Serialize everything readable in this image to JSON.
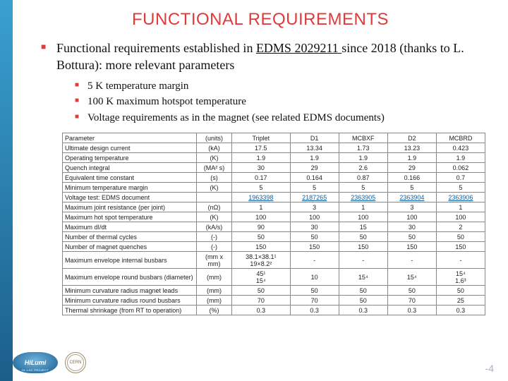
{
  "title": "FUNCTIONAL REQUIREMENTS",
  "bullet_main_pre": "Functional requirements established in ",
  "bullet_main_link": "EDMS 2029211 ",
  "bullet_main_post": "since 2018 (thanks to L. Bottura): more relevant parameters",
  "sub_bullets": [
    "5 K temperature margin",
    "100 K maximum hotspot temperature",
    "Voltage requirements as in the magnet (see related EDMS documents)"
  ],
  "table": {
    "columns": [
      "Parameter",
      "(units)",
      "Triplet",
      "D1",
      "MCBXF",
      "D2",
      "MCBRD"
    ],
    "rows": [
      [
        "Ultimate design current",
        "(kA)",
        "17.5",
        "13.34",
        "1.73",
        "13.23",
        "0.423"
      ],
      [
        "Operating temperature",
        "(K)",
        "1.9",
        "1.9",
        "1.9",
        "1.9",
        "1.9"
      ],
      [
        "Quench integral",
        "(MA² s)",
        "30",
        "29",
        "2.6",
        "29",
        "0.062"
      ],
      [
        "Equivalent time constant",
        "(s)",
        "0.17",
        "0.164",
        "0.87",
        "0.166",
        "0.7"
      ],
      [
        "Minimum temperature margin",
        "(K)",
        "5",
        "5",
        "5",
        "5",
        "5"
      ],
      [
        "Voltage test: EDMS document",
        "",
        "1963398",
        "2187265",
        "2363905",
        "2363904",
        "2363906"
      ],
      [
        "Maximum joint resistance (per joint)",
        "(nΩ)",
        "1",
        "3",
        "1",
        "3",
        "1"
      ],
      [
        "Maximum hot spot temperature",
        "(K)",
        "100",
        "100",
        "100",
        "100",
        "100"
      ],
      [
        "Maximum dI/dt",
        "(kA/s)",
        "90",
        "30",
        "15",
        "30",
        "2"
      ],
      [
        "Number of thermal cycles",
        "(-)",
        "50",
        "50",
        "50",
        "50",
        "50"
      ],
      [
        "Number of magnet quenches",
        "(-)",
        "150",
        "150",
        "150",
        "150",
        "150"
      ],
      [
        "Maximum envelope internal busbars",
        "(mm x mm)",
        "38.1×38.1¹\n19×8.2²",
        "-",
        "-",
        "-",
        "-"
      ],
      [
        "Maximum envelope round busbars (diameter)",
        "(mm)",
        "45¹\n15⁴",
        "10",
        "15⁴",
        "15⁴",
        "15⁴\n1.6³"
      ],
      [
        "Minimum curvature radius magnet leads",
        "(mm)",
        "50",
        "50",
        "50",
        "50",
        "50"
      ],
      [
        "Minimum curvature radius round busbars",
        "(mm)",
        "70",
        "70",
        "50",
        "70",
        "25"
      ],
      [
        "Thermal shrinkage (from RT to operation)",
        "(%)",
        "0.3",
        "0.3",
        "0.3",
        "0.3",
        "0.3"
      ]
    ],
    "link_row_index": 5
  },
  "logos": {
    "hilumi": "HiLumi",
    "hilumi_sub": "HL-LHC PROJECT",
    "cern": "CERN"
  },
  "page_number": "-4",
  "colors": {
    "accent_red": "#e03a3a",
    "link_blue": "#0a5ea8",
    "side_top": "#3aa0d0",
    "side_bottom": "#1b5e8a"
  }
}
